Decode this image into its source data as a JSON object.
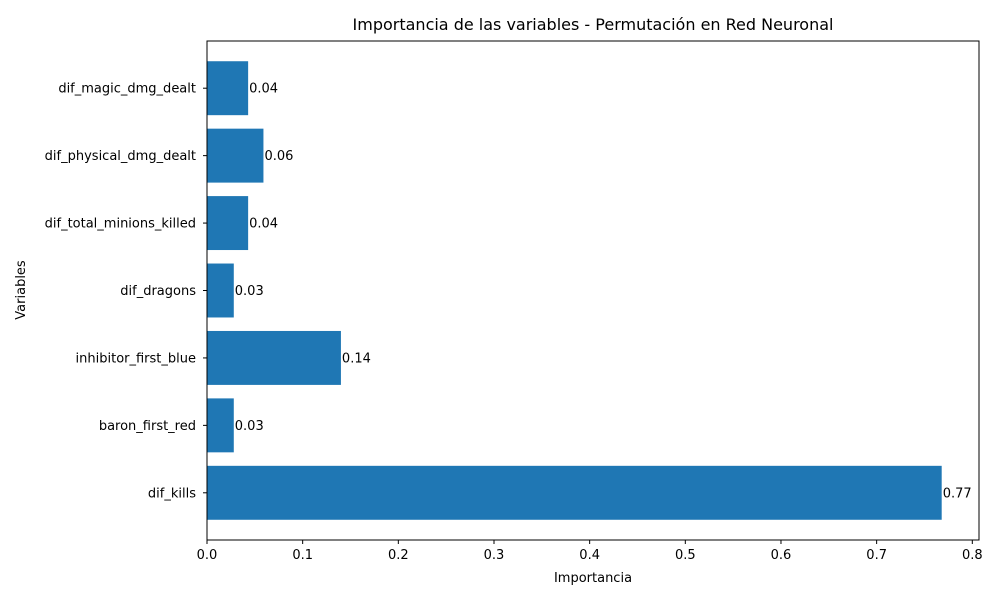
{
  "chart_data": {
    "type": "bar",
    "orientation": "horizontal",
    "title": "Importancia de las variables - Permutación en Red Neuronal",
    "xlabel": "Importancia",
    "ylabel": "Variables",
    "categories": [
      "dif_kills",
      "baron_first_red",
      "inhibitor_first_blue",
      "dif_dragons",
      "dif_total_minions_killed",
      "dif_physical_dmg_dealt",
      "dif_magic_dmg_dealt"
    ],
    "values": [
      0.768,
      0.028,
      0.14,
      0.028,
      0.043,
      0.059,
      0.043
    ],
    "value_labels": [
      "0.77",
      "0.03",
      "0.14",
      "0.03",
      "0.04",
      "0.06",
      "0.04"
    ],
    "xlim": [
      0,
      0.807
    ],
    "xticks": [
      0.0,
      0.1,
      0.2,
      0.3,
      0.4,
      0.5,
      0.6,
      0.7,
      0.8
    ],
    "xtick_labels": [
      "0.0",
      "0.1",
      "0.2",
      "0.3",
      "0.4",
      "0.5",
      "0.6",
      "0.7",
      "0.8"
    ],
    "bar_color": "#1f77b4",
    "grid": false,
    "legend": "none"
  }
}
